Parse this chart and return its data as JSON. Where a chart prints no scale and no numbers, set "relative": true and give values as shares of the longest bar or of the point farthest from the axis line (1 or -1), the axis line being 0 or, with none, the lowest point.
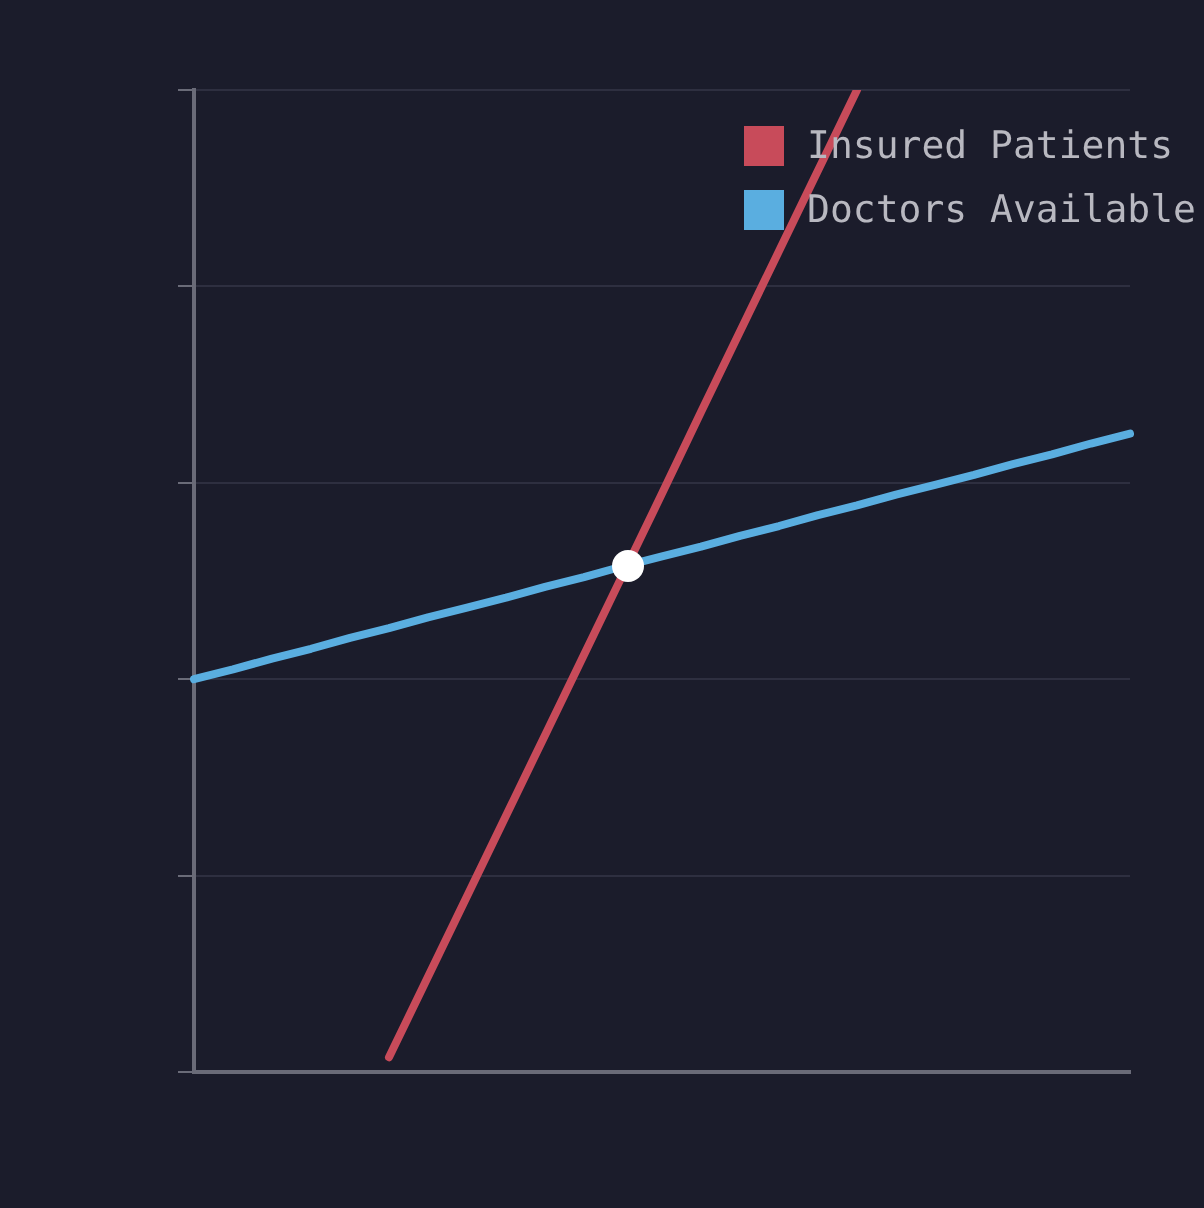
{
  "chart_data": {
    "type": "line",
    "relative": true,
    "grid": "y",
    "legend": "top right",
    "tick_labels": false,
    "marker": "none",
    "categories": [
      null,
      null,
      null,
      null,
      null,
      null,
      null,
      null,
      null,
      null,
      null,
      null,
      null,
      null,
      null,
      null,
      null,
      null,
      null,
      null,
      null,
      null,
      null,
      null,
      null
    ],
    "series": [
      {
        "name": "Insured Patients",
        "color": "#c84b5a",
        "values": [
          null,
          null,
          null,
          null,
          null,
          0.015,
          0.097,
          0.179,
          0.261,
          0.343,
          0.425,
          0.507,
          0.589,
          0.672,
          0.754,
          0.836,
          0.918,
          1.0,
          null,
          null,
          null,
          null,
          null,
          null,
          null
        ]
      },
      {
        "name": "Doctors Available",
        "color": "#5aaee0",
        "values": [
          0.4,
          0.41,
          0.421,
          0.431,
          0.442,
          0.452,
          0.463,
          0.473,
          0.483,
          0.494,
          0.504,
          0.515,
          0.525,
          0.535,
          0.546,
          0.556,
          0.567,
          0.577,
          0.588,
          0.598,
          0.608,
          0.619,
          0.629,
          0.64,
          0.65
        ]
      }
    ]
  }
}
